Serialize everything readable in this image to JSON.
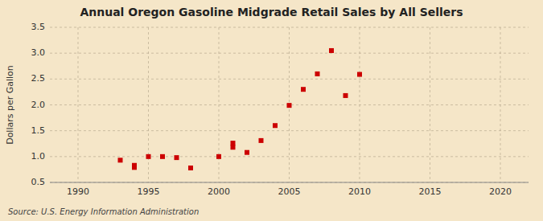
{
  "chart_data": {
    "type": "scatter",
    "title": "Annual Oregon Gasoline Midgrade Retail Sales by All Sellers",
    "ylabel": "Dollars per Gallon",
    "source": "Source: U.S. Energy Information Administration",
    "x": [
      1993,
      1994,
      1994,
      1995,
      1996,
      1997,
      1998,
      2000,
      2001,
      2001,
      2002,
      2003,
      2004,
      2005,
      2006,
      2007,
      2008,
      2009,
      2010
    ],
    "values": [
      0.93,
      0.79,
      0.83,
      1.0,
      1.0,
      0.98,
      0.78,
      1.0,
      1.26,
      1.18,
      1.08,
      1.31,
      1.6,
      1.99,
      2.3,
      2.6,
      3.05,
      2.18,
      2.59
    ],
    "color": "#cc0000",
    "marker": "square",
    "xlim": [
      1988,
      2022
    ],
    "ylim": [
      0.5,
      3.5
    ],
    "xticks": [
      1990,
      1995,
      2000,
      2005,
      2010,
      2015,
      2020
    ],
    "yticks": [
      0.5,
      {
        "value": 1.0,
        "label": "1.0"
      },
      1.5,
      {
        "value": 2.0,
        "label": "2.0"
      },
      2.5,
      {
        "value": 3.0,
        "label": "3.0"
      },
      3.5
    ],
    "grid": true
  }
}
